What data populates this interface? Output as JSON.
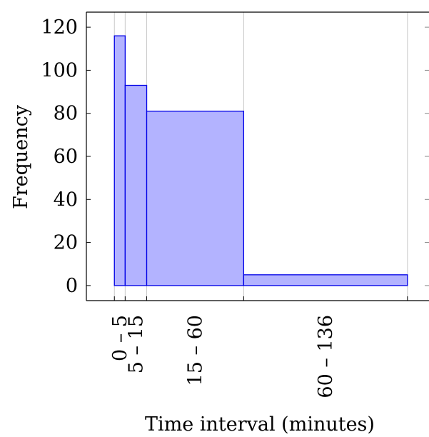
{
  "chart_data": {
    "type": "bar",
    "title": "",
    "xlabel": "Time interval (minutes)",
    "ylabel": "Frequency",
    "x_range": [
      -13,
      146
    ],
    "ylim": [
      -7,
      127
    ],
    "y_ticks": [
      0,
      20,
      40,
      60,
      80,
      100,
      120
    ],
    "x_tick_positions": [
      0,
      5,
      15,
      60,
      136
    ],
    "grid": "vertical",
    "bars": [
      {
        "label": "0 – 5",
        "x_start": 0,
        "x_end": 5,
        "value": 116
      },
      {
        "label": "5 – 15",
        "x_start": 5,
        "x_end": 15,
        "value": 93
      },
      {
        "label": "15 – 60",
        "x_start": 15,
        "x_end": 60,
        "value": 81
      },
      {
        "label": "60 – 136",
        "x_start": 60,
        "x_end": 136,
        "value": 5
      }
    ],
    "colors": {
      "bar_fill": "#b3b3ff",
      "bar_stroke": "#0000e6",
      "grid": "#c8c8c8",
      "axis": "#000000"
    }
  }
}
